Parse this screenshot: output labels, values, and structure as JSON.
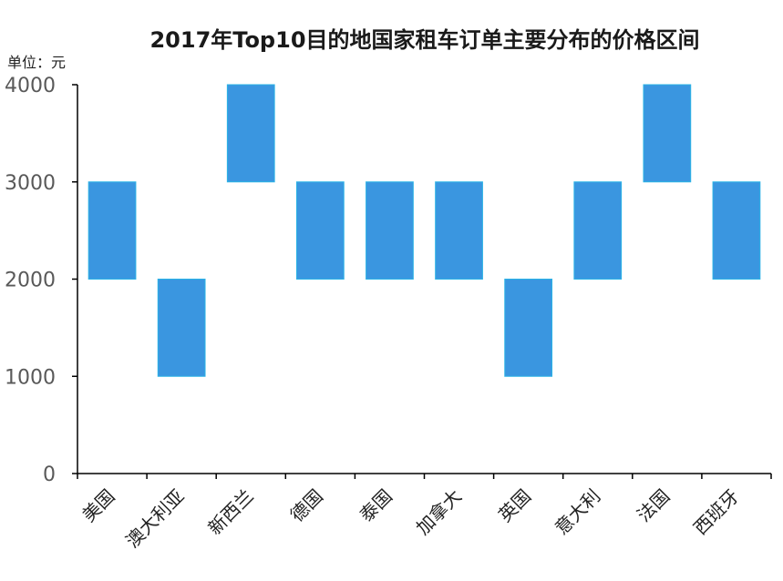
{
  "chart_data": {
    "type": "bar",
    "title": "2017年Top10目的地国家租车订单主要分布的价格区间",
    "unit_label": "单位：元",
    "categories": [
      "美国",
      "澳大利亚",
      "新西兰",
      "德国",
      "泰国",
      "加拿大",
      "英国",
      "意大利",
      "法国",
      "西班牙"
    ],
    "ranges": [
      [
        2000,
        3000
      ],
      [
        1000,
        2000
      ],
      [
        3000,
        4000
      ],
      [
        2000,
        3000
      ],
      [
        2000,
        3000
      ],
      [
        2000,
        3000
      ],
      [
        1000,
        2000
      ],
      [
        2000,
        3000
      ],
      [
        3000,
        4000
      ],
      [
        2000,
        3000
      ]
    ],
    "yticks": [
      "0",
      "1000",
      "2000",
      "3000",
      "4000"
    ],
    "ylim": [
      0,
      4000
    ],
    "bar_color": "#3a96e0",
    "bar_edge_color": "#2bb3e6",
    "grid": false,
    "legend": "none"
  }
}
